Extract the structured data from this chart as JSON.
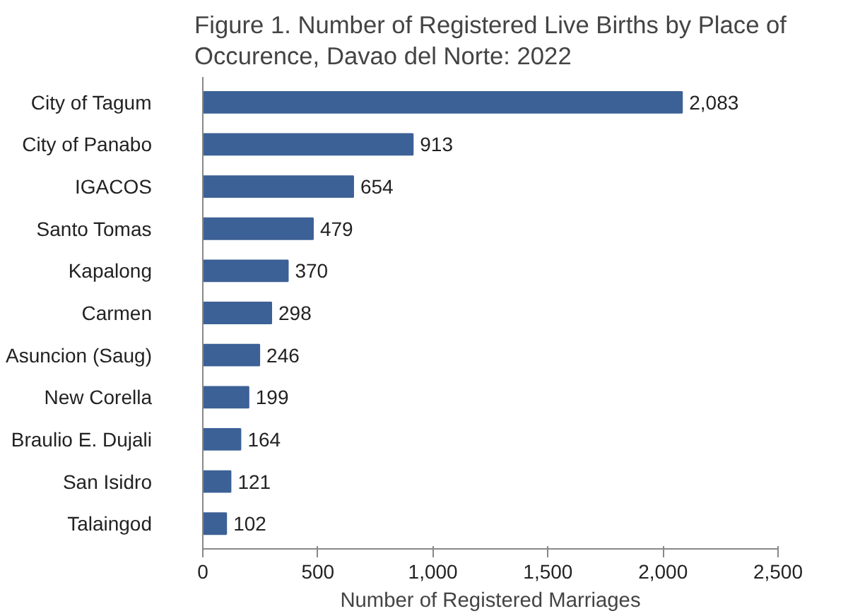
{
  "chart_data": {
    "type": "bar",
    "orientation": "horizontal",
    "title": "Figure 1. Number of Registered Live Births by Place of\nOccurence, Davao del Norte: 2022",
    "xlabel": "Number of Registered Marriages",
    "categories": [
      "City of Tagum",
      "City of Panabo",
      "IGACOS",
      "Santo Tomas",
      "Kapalong",
      "Carmen",
      "Asuncion (Saug)",
      "New Corella",
      "Braulio E. Dujali",
      "San Isidro",
      "Talaingod"
    ],
    "values": [
      2083,
      913,
      654,
      479,
      370,
      298,
      246,
      199,
      164,
      121,
      102
    ],
    "value_labels": [
      "2,083",
      "913",
      "654",
      "479",
      "370",
      "298",
      "246",
      "199",
      "164",
      "121",
      "102"
    ],
    "color": "#3c6196",
    "xlim": [
      0,
      2500
    ],
    "xticks": [
      0,
      500,
      {
        "value": 1000,
        "label": "1,000"
      },
      {
        "value": 1500,
        "label": "1,500"
      },
      {
        "value": 2000,
        "label": "2,000"
      },
      {
        "value": 2500,
        "label": "2,500"
      }
    ],
    "grid": false
  }
}
